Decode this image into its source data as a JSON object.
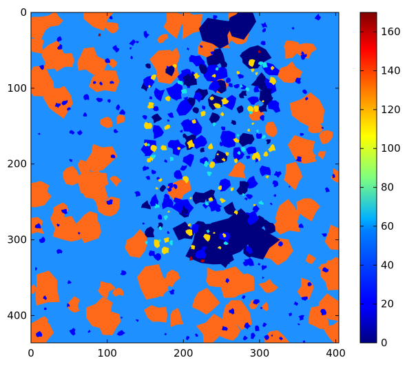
{
  "chart_data": {
    "type": "heatmap",
    "title": "",
    "xlabel": "",
    "ylabel": "",
    "colormap": "jet",
    "image_size": {
      "cols": 404,
      "rows": 436
    },
    "xlim": [
      0,
      404
    ],
    "ylim": [
      436,
      0
    ],
    "x_ticks": [
      0,
      100,
      200,
      300,
      400
    ],
    "y_ticks": [
      0,
      100,
      200,
      300,
      400
    ],
    "colorbar": {
      "range": [
        0,
        170
      ],
      "ticks": [
        0,
        20,
        40,
        60,
        80,
        100,
        120,
        140,
        160
      ]
    },
    "dominant_values": [
      {
        "value": 38,
        "color": "#1e90ff",
        "share": "background"
      },
      {
        "value": 128,
        "color": "#ff6a1a",
        "share": "large scattered patches"
      },
      {
        "value": 0,
        "color": "#00007f",
        "share": "central and top regions"
      },
      {
        "value": 20,
        "color": "#0000ff",
        "share": "speckles"
      },
      {
        "value": 105,
        "color": "#ffd700",
        "share": "small fragments"
      },
      {
        "value": 60,
        "color": "#19e6e6",
        "share": "sparse fragments"
      },
      {
        "value": 165,
        "color": "#b00000",
        "share": "rare pixels"
      }
    ],
    "grid": false,
    "legend": "colorbar right"
  }
}
